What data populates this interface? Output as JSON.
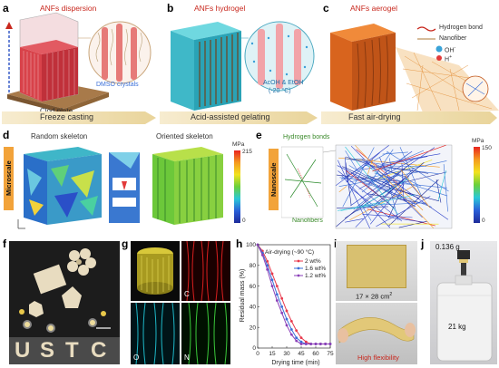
{
  "panels": {
    "a": {
      "label": "a",
      "title": "ANFs dispersion",
      "dmso": "DMSO crystals",
      "plate": "Clod plate",
      "caption": "Freeze casting"
    },
    "b": {
      "label": "b",
      "title": "ANFs hydrogel",
      "solvent": "AcOH & EtOH",
      "temp": "(-20 °C)",
      "caption": "Acid-assisted gelating"
    },
    "c": {
      "label": "c",
      "title": "ANFs aerogel",
      "caption": "Fast air-drying",
      "legend": {
        "hbond": "Hydrogen bond",
        "nanofiber": "Nanofiber",
        "oh": "OH",
        "oh_sup": "-",
        "h": "H",
        "h_sup": "+"
      }
    },
    "d": {
      "label": "d",
      "random": "Random skeleton",
      "oriented": "Oriented skeleton",
      "tab": "Microscale",
      "cbar_unit": "MPa",
      "cbar_max": "215",
      "cbar_min": "0"
    },
    "e": {
      "label": "e",
      "hbonds": "Hydrogen bonds",
      "nanofibers": "Nanofibers",
      "tab": "Nanoscale",
      "cbar_unit": "MPa",
      "cbar_max": "150",
      "cbar_min": "0"
    },
    "f": {
      "label": "f",
      "letters": [
        "U",
        "S",
        "T",
        "C"
      ]
    },
    "g": {
      "label": "g",
      "c": "C",
      "o": "O",
      "n": "N"
    },
    "h": {
      "label": "h"
    },
    "i": {
      "label": "i",
      "size": "17 × 28 cm",
      "size_sup": "2",
      "flex": "High flexibility"
    },
    "j": {
      "label": "j",
      "weight_top": "0.136 g",
      "weight_bottom": "21 kg"
    }
  },
  "colors": {
    "title_red": "#c8281e",
    "tab_orange": "#f2a33a",
    "s1": "#e8394c",
    "s2": "#3a6fd8",
    "s3": "#8a3fb8"
  },
  "chart_data": {
    "type": "line",
    "title": "",
    "xlabel": "Drying time (min)",
    "ylabel": "Residual mass (%)",
    "annotation": "Air-drying (~90 °C)",
    "xlim": [
      0,
      75
    ],
    "ylim": [
      0,
      100
    ],
    "xticks": [
      0,
      15,
      30,
      45,
      60,
      75
    ],
    "yticks": [
      0,
      20,
      40,
      60,
      80,
      100
    ],
    "legend_position": "top-right",
    "series": [
      {
        "name": "2 wt%",
        "color": "#e8394c",
        "x": [
          0,
          5,
          10,
          15,
          20,
          25,
          30,
          35,
          40,
          45,
          50,
          55,
          60,
          65,
          70,
          75
        ],
        "y": [
          100,
          94,
          84,
          72,
          60,
          48,
          36,
          26,
          17,
          10,
          6,
          4,
          4,
          4,
          4,
          4
        ]
      },
      {
        "name": "1.6 wt%",
        "color": "#3a6fd8",
        "x": [
          0,
          5,
          10,
          15,
          20,
          25,
          30,
          35,
          40,
          45,
          50,
          55,
          60,
          65,
          70,
          75
        ],
        "y": [
          100,
          92,
          80,
          66,
          52,
          40,
          28,
          18,
          10,
          6,
          4,
          4,
          4,
          4,
          4,
          4
        ]
      },
      {
        "name": "1.2 wt%",
        "color": "#8a3fb8",
        "x": [
          0,
          5,
          10,
          15,
          20,
          25,
          30,
          35,
          40,
          45,
          50,
          55,
          60,
          65,
          70,
          75
        ],
        "y": [
          100,
          90,
          76,
          60,
          46,
          34,
          22,
          13,
          7,
          4,
          4,
          4,
          4,
          4,
          4,
          4
        ]
      }
    ]
  }
}
